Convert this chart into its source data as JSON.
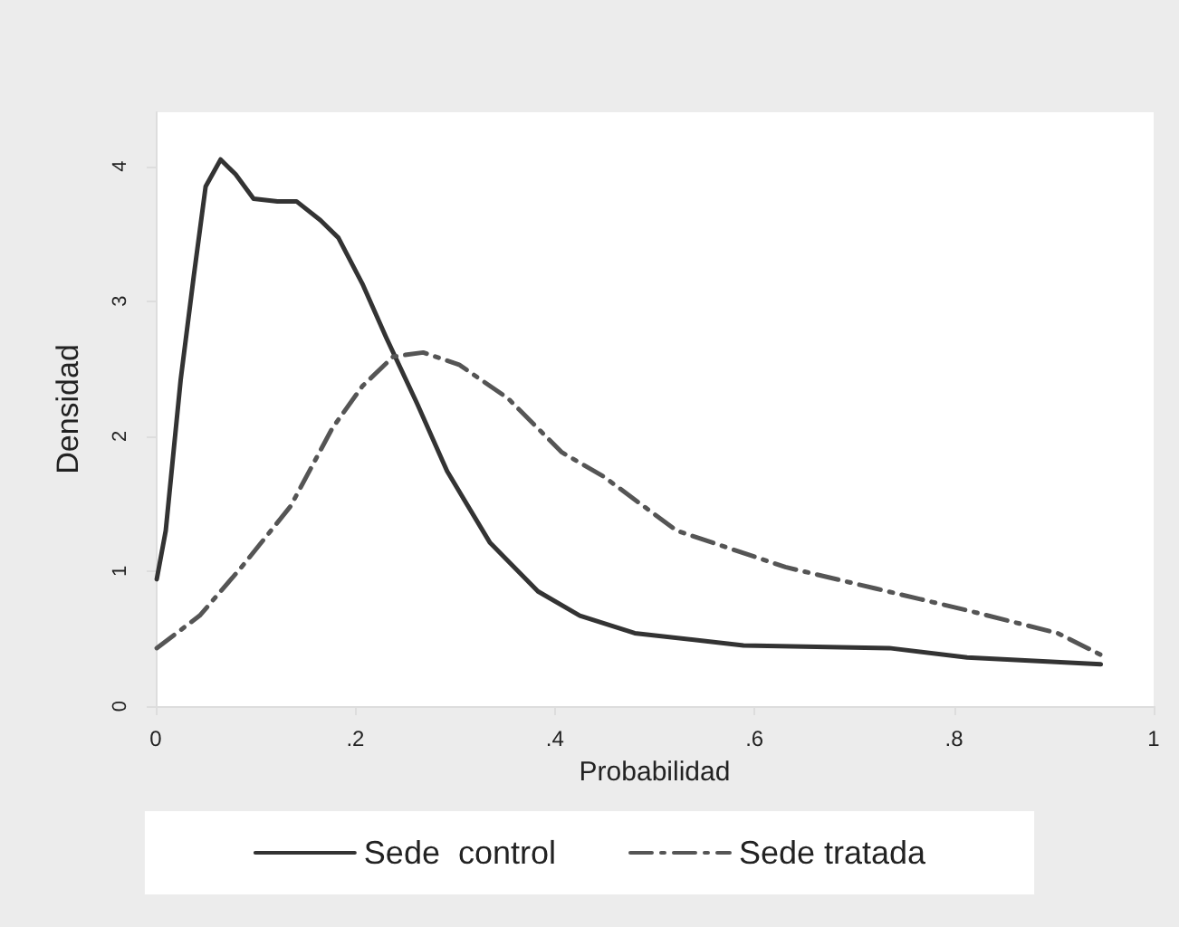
{
  "chart_data": {
    "type": "line",
    "xlabel": "Probabilidad",
    "ylabel": "Densidad",
    "xlim": [
      0,
      1
    ],
    "xticks": [
      0,
      {
        "value": 0.2,
        "label": ".2"
      },
      {
        "value": 0.4,
        "label": ".4"
      },
      {
        "value": 0.6,
        "label": ".6"
      },
      {
        "value": 0.8,
        "label": ".8"
      },
      1
    ],
    "ylim": [
      0,
      4.4
    ],
    "yticks": [
      0,
      1,
      2,
      3,
      4
    ],
    "grid": false,
    "legend": "bottom",
    "marker": "none",
    "series": [
      {
        "name": "Sede  control",
        "color": "#333333",
        "line_style": "solid",
        "x": [
          0.001,
          0.01,
          0.025,
          0.038,
          0.05,
          0.065,
          0.08,
          0.098,
          0.122,
          0.141,
          0.165,
          0.183,
          0.207,
          0.231,
          0.262,
          0.292,
          0.335,
          0.383,
          0.425,
          0.48,
          0.589,
          0.735,
          0.813,
          0.947
        ],
        "values": [
          0.94,
          1.3,
          2.42,
          3.18,
          3.85,
          4.05,
          3.94,
          3.76,
          3.74,
          3.74,
          3.6,
          3.47,
          3.13,
          2.73,
          2.24,
          1.74,
          1.21,
          0.85,
          0.67,
          0.54,
          0.45,
          0.43,
          0.36,
          0.31
        ]
      },
      {
        "name": "Sede tratada",
        "color": "#555555",
        "line_style": "dashed",
        "x": [
          0.001,
          0.044,
          0.086,
          0.135,
          0.177,
          0.207,
          0.238,
          0.268,
          0.304,
          0.353,
          0.407,
          0.449,
          0.522,
          0.631,
          0.722,
          0.813,
          0.904,
          0.947
        ],
        "values": [
          0.43,
          0.67,
          1.03,
          1.48,
          2.06,
          2.37,
          2.59,
          2.62,
          2.53,
          2.28,
          1.88,
          1.7,
          1.3,
          1.03,
          0.87,
          0.71,
          0.54,
          0.38
        ]
      }
    ]
  }
}
